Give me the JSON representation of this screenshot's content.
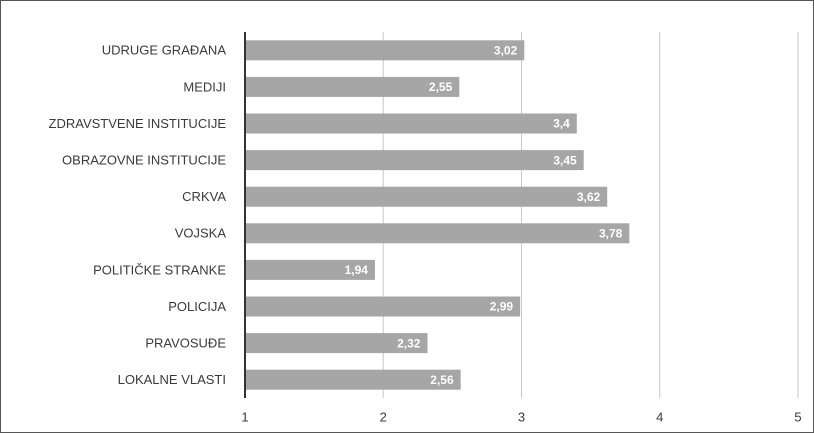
{
  "chart_data": {
    "type": "bar",
    "orientation": "horizontal",
    "categories": [
      "UDRUGE GRAĐANA",
      "MEDIJI",
      "ZDRAVSTVENE INSTITUCIJE",
      "OBRAZOVNE INSTITUCIJE",
      "CRKVA",
      "VOJSKA",
      "POLITIČKE STRANKE",
      "POLICIJA",
      "PRAVOSUĐE",
      "LOKALNE VLASTI"
    ],
    "values": [
      3.02,
      2.55,
      3.4,
      3.45,
      3.62,
      3.78,
      1.94,
      2.99,
      2.32,
      2.56
    ],
    "value_labels": [
      "3,02",
      "2,55",
      "3,4",
      "3,45",
      "3,62",
      "3,78",
      "1,94",
      "2,99",
      "2,32",
      "2,56"
    ],
    "color": "#a6a6a6",
    "xlim": [
      1,
      5
    ],
    "xticks": [
      1,
      2,
      3,
      4,
      5
    ],
    "grid": true
  }
}
